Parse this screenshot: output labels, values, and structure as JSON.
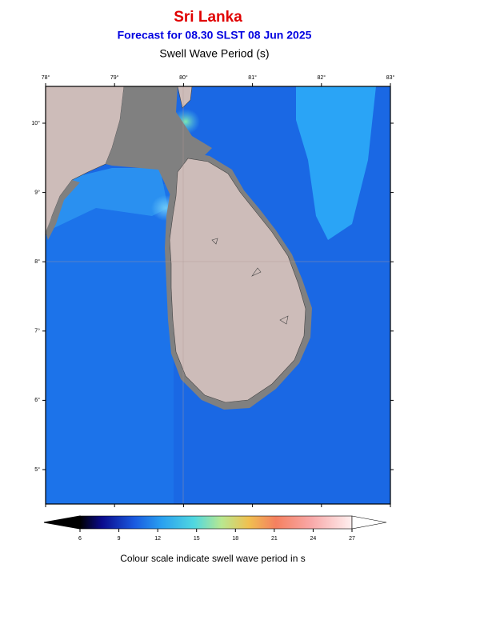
{
  "header": {
    "title": "Sri Lanka",
    "subtitle": "Forecast for  08.30 SLST 08 Jun 2025",
    "variable": "Swell Wave Period (s)"
  },
  "map": {
    "longitude_labels": [
      "78°",
      "79°",
      "80°",
      "81°",
      "82°",
      "83°"
    ],
    "latitude_labels": [
      "10°",
      "9°",
      "8°",
      "7°",
      "6°",
      "5°"
    ]
  },
  "colorbar": {
    "ticks": [
      6,
      9,
      12,
      15,
      18,
      21,
      24,
      27
    ],
    "caption": "Colour scale indicate swell wave period in s"
  }
}
